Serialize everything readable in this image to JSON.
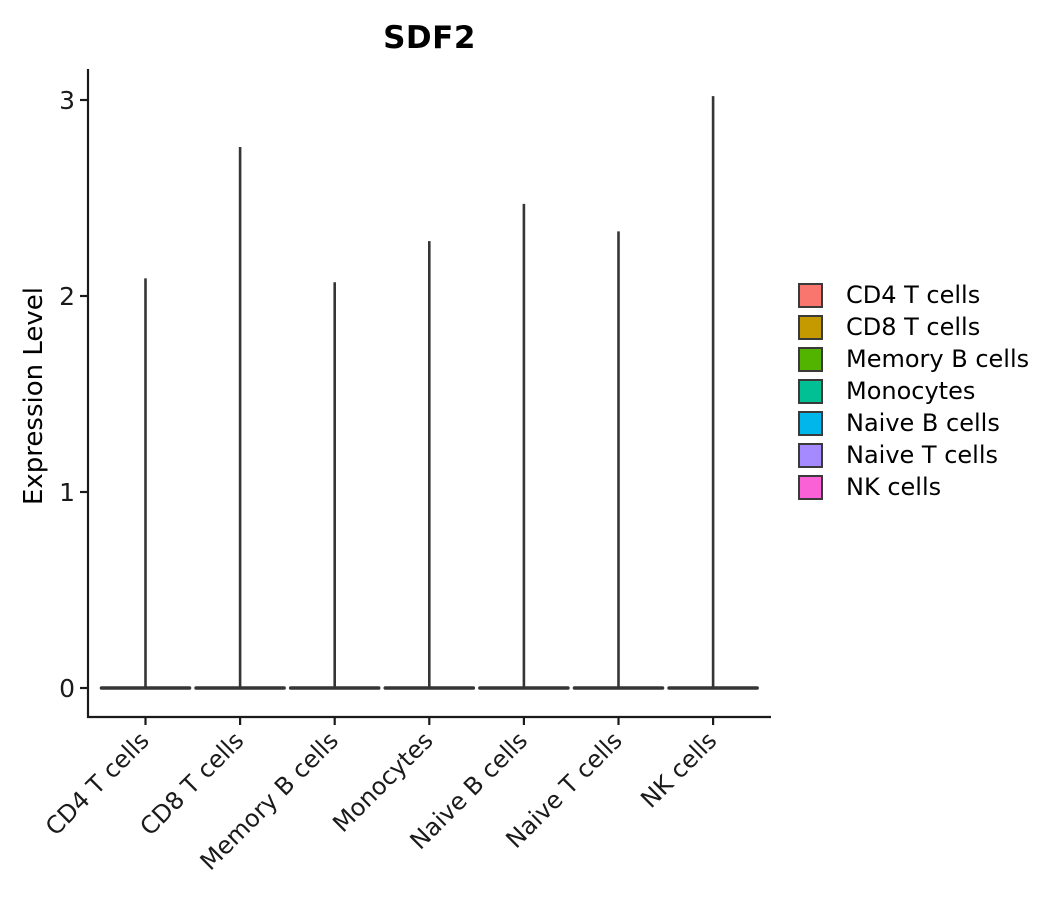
{
  "chart_data": {
    "type": "violin",
    "title": "SDF2",
    "xlabel": "",
    "ylabel": "Expression Level",
    "categories": [
      "CD4 T cells",
      "CD8 T cells",
      "Memory B cells",
      "Monocytes",
      "Naive B cells",
      "Naive T cells",
      "NK cells"
    ],
    "series": [
      {
        "name": "CD4 T cells",
        "color": "#F8766D",
        "max_expression": 2.09,
        "density_peak_at": 0
      },
      {
        "name": "CD8 T cells",
        "color": "#C49A00",
        "max_expression": 2.76,
        "density_peak_at": 0
      },
      {
        "name": "Memory B cells",
        "color": "#53B400",
        "max_expression": 2.07,
        "density_peak_at": 0
      },
      {
        "name": "Monocytes",
        "color": "#00C094",
        "max_expression": 2.28,
        "density_peak_at": 0
      },
      {
        "name": "Naive B cells",
        "color": "#00B6EB",
        "max_expression": 2.47,
        "density_peak_at": 0
      },
      {
        "name": "Naive T cells",
        "color": "#A58AFF",
        "max_expression": 2.33,
        "density_peak_at": 0
      },
      {
        "name": "NK cells",
        "color": "#FB61D7",
        "max_expression": 3.02,
        "density_peak_at": 0
      }
    ],
    "y_ticks": [
      0,
      1,
      2,
      3
    ],
    "ylim": [
      -0.15,
      3.15
    ],
    "grid": "off",
    "legend": {
      "position": "right",
      "entries": [
        {
          "label": "CD4 T cells",
          "color": "#F8766D"
        },
        {
          "label": "CD8 T cells",
          "color": "#C49A00"
        },
        {
          "label": "Memory B cells",
          "color": "#53B400"
        },
        {
          "label": "Monocytes",
          "color": "#00C094"
        },
        {
          "label": "Naive B cells",
          "color": "#00B6EB"
        },
        {
          "label": "Naive T cells",
          "color": "#A58AFF"
        },
        {
          "label": "NK cells",
          "color": "#FB61D7"
        }
      ]
    }
  },
  "style": {
    "axis_color": "#1a1a1a",
    "violin_outline_color": "#353535",
    "background": "#ffffff"
  }
}
